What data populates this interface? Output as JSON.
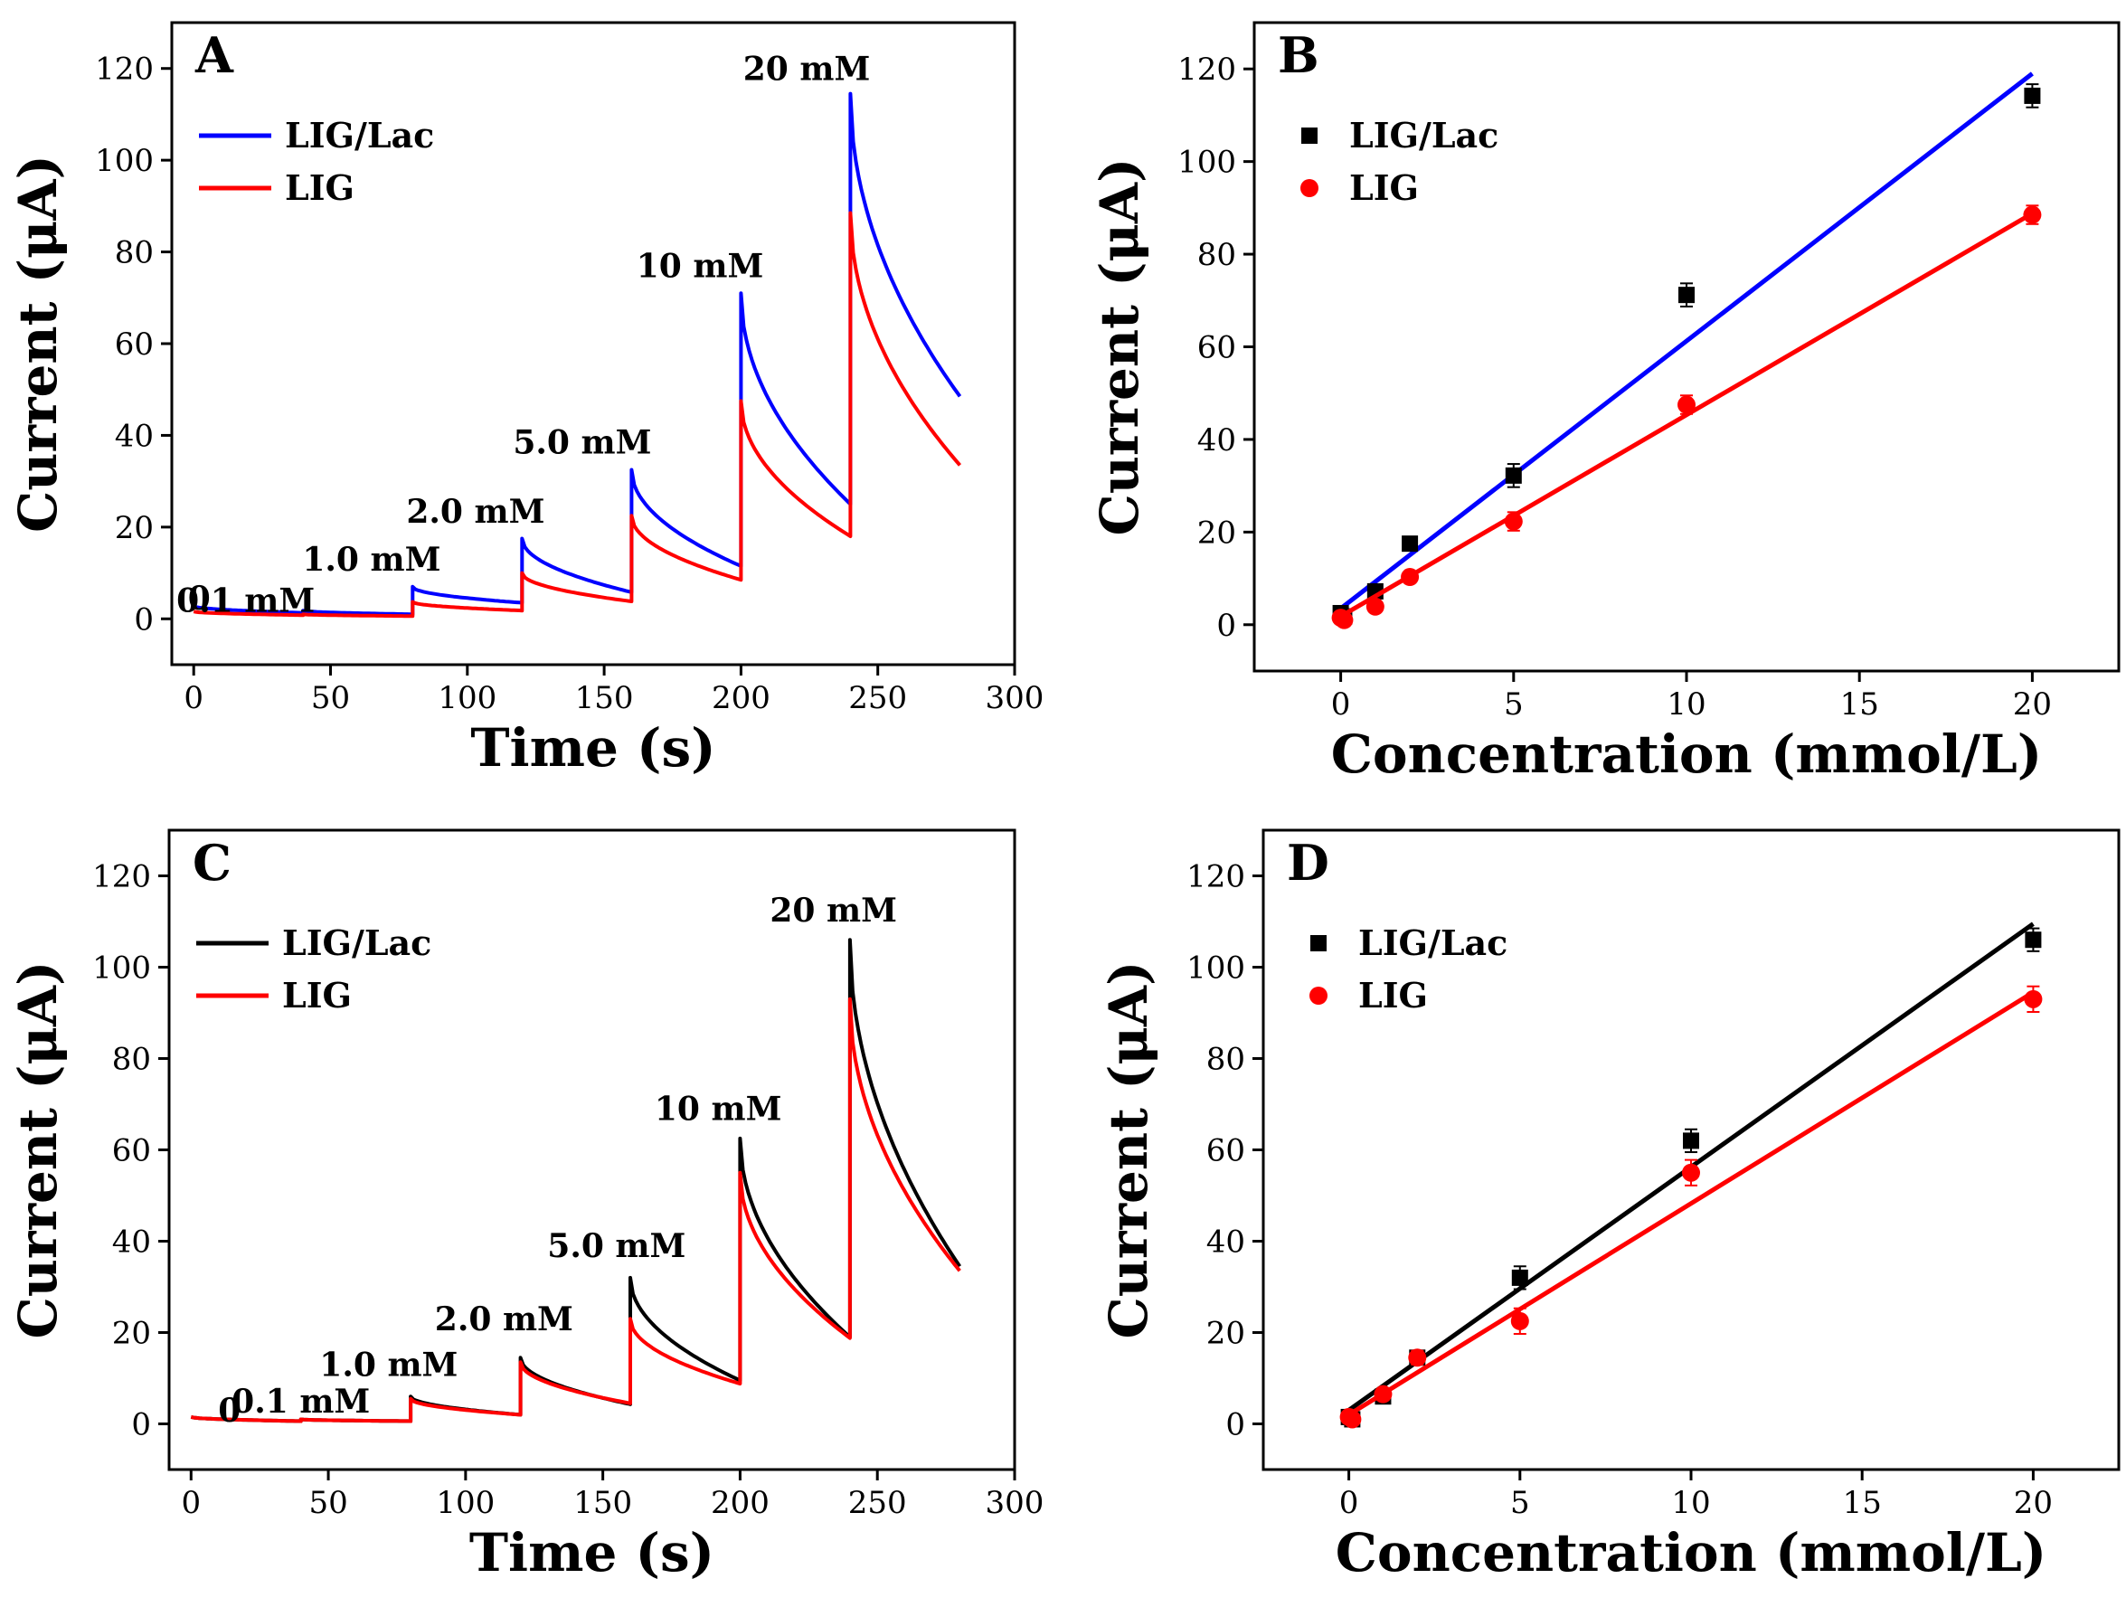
{
  "chart_data": [
    {
      "panel": "A",
      "type": "line",
      "title": "",
      "xlabel": "Time (s)",
      "ylabel": "Current (μA)",
      "xlim": [
        -8,
        300
      ],
      "ylim": [
        -10,
        130
      ],
      "xticks": [
        0,
        50,
        100,
        150,
        200,
        250,
        300
      ],
      "yticks": [
        0,
        20,
        40,
        60,
        80,
        100,
        120
      ],
      "legend_position": "top-left",
      "steps": [
        0,
        40,
        80,
        120,
        160,
        200,
        240
      ],
      "series": [
        {
          "name": "LIG/Lac",
          "color": "#0000ff",
          "start": 2.8,
          "baseline": 1.0,
          "peaks": [
            2.8,
            1.8,
            7.0,
            17.5,
            32.5,
            71.0,
            114.5
          ],
          "ends": [
            1.3,
            1.0,
            3.5,
            5.8,
            11.5,
            25.0,
            48.5
          ]
        },
        {
          "name": "LIG",
          "color": "#ff0000",
          "start": 1.6,
          "baseline": 0.6,
          "peaks": [
            1.6,
            1.0,
            3.7,
            10.0,
            22.5,
            47.5,
            88.5
          ],
          "ends": [
            0.8,
            0.6,
            1.8,
            3.8,
            8.5,
            18.0,
            33.5
          ]
        }
      ],
      "annotations": [
        {
          "text": "0",
          "x": 2,
          "y": 2
        },
        {
          "text": "0.1 mM",
          "x": 19,
          "y": 1.5
        },
        {
          "text": "1.0 mM",
          "x": 65,
          "y": 10.5
        },
        {
          "text": "2.0 mM",
          "x": 103,
          "y": 21
        },
        {
          "text": "5.0 mM",
          "x": 142,
          "y": 36
        },
        {
          "text": "10 mM",
          "x": 185,
          "y": 74.5
        },
        {
          "text": "20 mM",
          "x": 224,
          "y": 117.5
        }
      ]
    },
    {
      "panel": "B",
      "type": "scatter",
      "title": "",
      "xlabel": "Concentration (mmol/L)",
      "ylabel": "Current (μA)",
      "xlim": [
        -2.5,
        22.5
      ],
      "ylim": [
        -10,
        130
      ],
      "xticks": [
        0,
        5,
        10,
        15,
        20
      ],
      "yticks": [
        0,
        20,
        40,
        60,
        80,
        100,
        120
      ],
      "legend_position": "top-left",
      "series": [
        {
          "name": "LIG/Lac",
          "marker": "square",
          "marker_color": "#000000",
          "fit_color": "#0000ff",
          "x": [
            0,
            0.1,
            1,
            2,
            5,
            10,
            20
          ],
          "y": [
            2.5,
            1.8,
            7.2,
            17.5,
            32.2,
            71.2,
            114.2
          ],
          "err": [
            0.8,
            0.6,
            1.2,
            1.5,
            2.5,
            2.5,
            2.5
          ],
          "fit": [
            [
              0,
              3.5
            ],
            [
              20,
              119
            ]
          ]
        },
        {
          "name": "LIG",
          "marker": "circle",
          "marker_color": "#ff0000",
          "fit_color": "#ff0000",
          "x": [
            0,
            0.1,
            1,
            2,
            5,
            10,
            20
          ],
          "y": [
            1.5,
            1.0,
            3.9,
            10.3,
            22.3,
            47.5,
            88.5
          ],
          "err": [
            0.6,
            0.5,
            1.0,
            1.2,
            2.0,
            2.0,
            2.0
          ],
          "fit": [
            [
              0,
              1.8
            ],
            [
              20,
              88.8
            ]
          ]
        }
      ]
    },
    {
      "panel": "C",
      "type": "line",
      "title": "",
      "xlabel": "Time (s)",
      "ylabel": "Current (μA)",
      "xlim": [
        -8,
        300
      ],
      "ylim": [
        -10,
        130
      ],
      "xticks": [
        0,
        50,
        100,
        150,
        200,
        250,
        300
      ],
      "yticks": [
        0,
        20,
        40,
        60,
        80,
        100,
        120
      ],
      "legend_position": "top-left",
      "steps": [
        0,
        40,
        80,
        120,
        160,
        200,
        240
      ],
      "series": [
        {
          "name": "LIG/Lac",
          "color": "#000000",
          "start": 1.5,
          "baseline": 0.5,
          "peaks": [
            1.5,
            1.0,
            6.0,
            14.5,
            32.0,
            62.5,
            106.0
          ],
          "ends": [
            0.6,
            0.6,
            2.0,
            4.3,
            9.5,
            19.0,
            34.5
          ]
        },
        {
          "name": "LIG",
          "color": "#ff0000",
          "start": 1.5,
          "baseline": 0.5,
          "peaks": [
            1.5,
            1.0,
            5.5,
            13.5,
            23.0,
            55.0,
            93.0
          ],
          "ends": [
            0.6,
            0.6,
            2.0,
            4.5,
            8.8,
            18.8,
            33.5
          ]
        }
      ],
      "annotations": [
        {
          "text": "0",
          "x": 14,
          "y": 0.5
        },
        {
          "text": "0.1 mM",
          "x": 40,
          "y": 2.5
        },
        {
          "text": "1.0 mM",
          "x": 72,
          "y": 10.5
        },
        {
          "text": "2.0 mM",
          "x": 114,
          "y": 20.5
        },
        {
          "text": "5.0 mM",
          "x": 155,
          "y": 36.5
        },
        {
          "text": "10 mM",
          "x": 192,
          "y": 66.5
        },
        {
          "text": "20 mM",
          "x": 234,
          "y": 110
        }
      ]
    },
    {
      "panel": "D",
      "type": "scatter",
      "title": "",
      "xlabel": "Concentration (mmol/L)",
      "ylabel": "Current (μA)",
      "xlim": [
        -2.5,
        22.5
      ],
      "ylim": [
        -10,
        130
      ],
      "xticks": [
        0,
        5,
        10,
        15,
        20
      ],
      "yticks": [
        0,
        20,
        40,
        60,
        80,
        100,
        120
      ],
      "legend_position": "top-left",
      "series": [
        {
          "name": "LIG/Lac",
          "marker": "square",
          "marker_color": "#000000",
          "fit_color": "#000000",
          "x": [
            0,
            0.1,
            1,
            2,
            5,
            10,
            20
          ],
          "y": [
            1.5,
            1.0,
            6.0,
            14.5,
            32.0,
            62.0,
            106.0
          ],
          "err": [
            0.6,
            0.5,
            1.2,
            1.5,
            2.5,
            2.5,
            2.5
          ],
          "fit": [
            [
              0,
              3.0
            ],
            [
              20,
              109.5
            ]
          ]
        },
        {
          "name": "LIG",
          "marker": "circle",
          "marker_color": "#ff0000",
          "fit_color": "#ff0000",
          "x": [
            0,
            0.1,
            1,
            2,
            5,
            10,
            20
          ],
          "y": [
            1.5,
            1.0,
            6.5,
            14.5,
            22.5,
            55.0,
            93.0
          ],
          "err": [
            0.6,
            0.5,
            1.2,
            1.5,
            2.8,
            2.8,
            2.8
          ],
          "fit": [
            [
              0,
              2.0
            ],
            [
              20,
              94.5
            ]
          ]
        }
      ]
    }
  ]
}
